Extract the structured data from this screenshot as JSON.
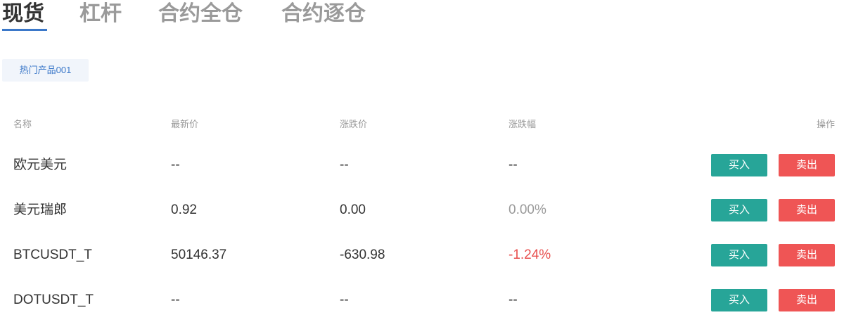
{
  "tabs": [
    {
      "label": "现货",
      "active": true
    },
    {
      "label": "杠杆",
      "active": false
    },
    {
      "label": "合约全仓",
      "active": false
    },
    {
      "label": "合约逐仓",
      "active": false
    }
  ],
  "category_chip": "热门产品001",
  "table": {
    "headers": {
      "name": "名称",
      "last_price": "最新价",
      "change": "涨跌价",
      "change_pct": "涨跌幅",
      "action": "操作"
    },
    "rows": [
      {
        "name": "欧元美元",
        "last_price": "--",
        "change": "--",
        "change_pct": "--",
        "buy": "买入",
        "sell": "卖出"
      },
      {
        "name": "美元瑞郎",
        "last_price": "0.92",
        "change": "0.00",
        "change_pct": "0.00%",
        "buy": "买入",
        "sell": "卖出"
      },
      {
        "name": "BTCUSDT_T",
        "last_price": "50146.37",
        "change": "-630.98",
        "change_pct": "-1.24%",
        "buy": "买入",
        "sell": "卖出"
      },
      {
        "name": "DOTUSDT_T",
        "last_price": "--",
        "change": "--",
        "change_pct": "--",
        "buy": "买入",
        "sell": "卖出"
      }
    ]
  },
  "colors": {
    "accent": "#3b78c9",
    "buy": "#27a598",
    "sell": "#ef5555",
    "down": "#e8504f",
    "neutral": "#9a9a9a"
  }
}
